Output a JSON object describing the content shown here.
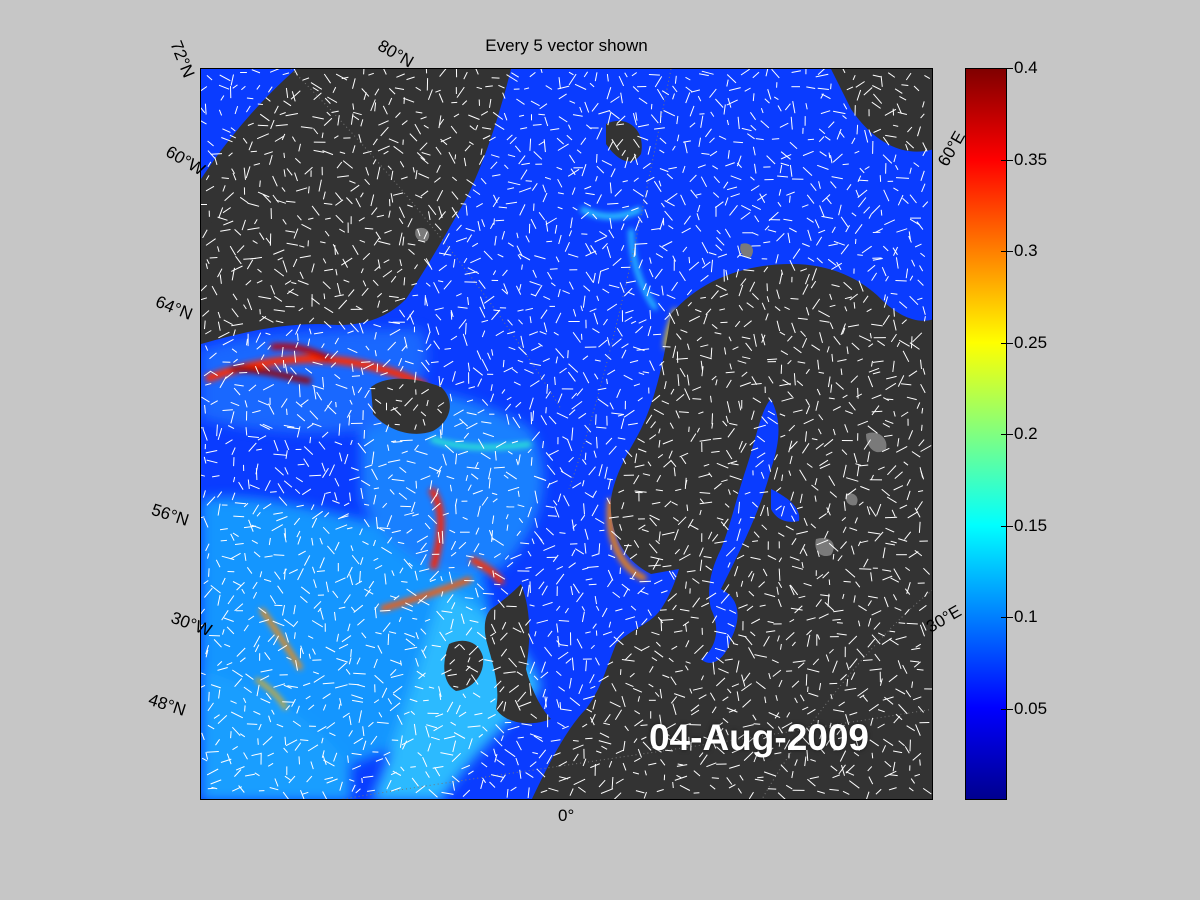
{
  "title": "Every 5 vector shown",
  "date_label": "04-Aug-2009",
  "map": {
    "graticule_labels": [
      "72°N",
      "80°N",
      "60°W",
      "64°N",
      "56°N",
      "30°W",
      "48°N",
      "0°",
      "30°E",
      "60°E"
    ],
    "land_color": "#333333",
    "lake_color": "#7a7a7a"
  },
  "colorbar": {
    "colormap": "jet",
    "min": 0,
    "max": 0.4,
    "ticks": [
      "0.4",
      "0.35",
      "0.3",
      "0.25",
      "0.2",
      "0.15",
      "0.1",
      "0.05"
    ]
  },
  "colors": {
    "background": "#c6c6c6",
    "vector_arrows": "#ffffff"
  }
}
